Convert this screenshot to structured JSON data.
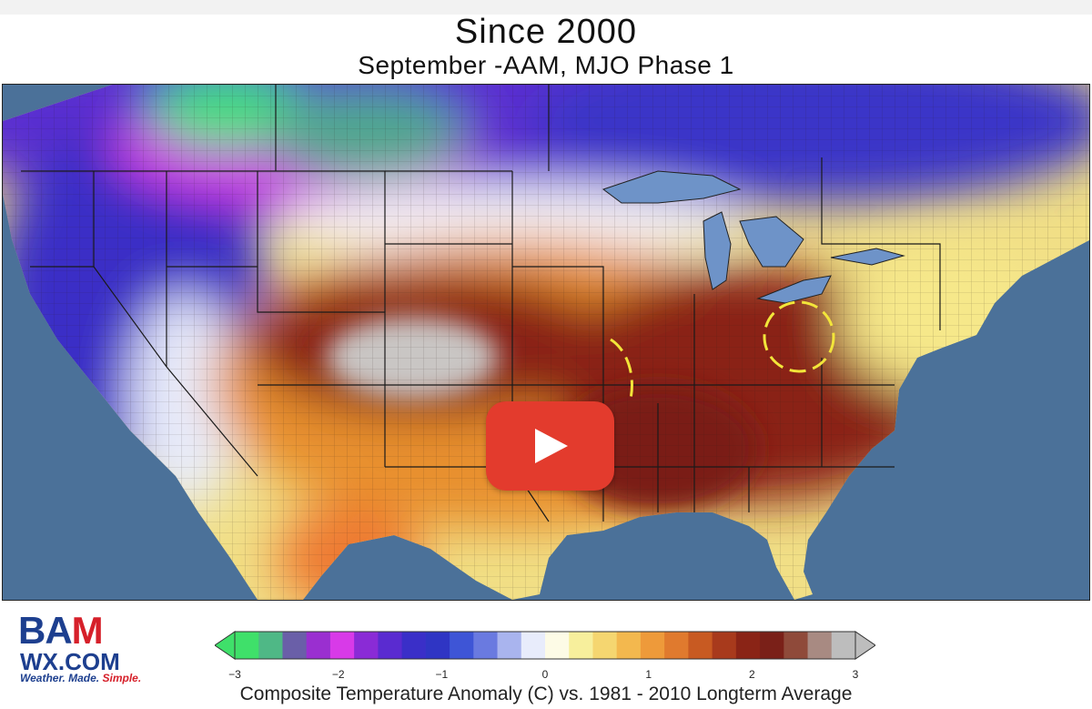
{
  "header": {
    "title": "Since 2000",
    "subtitle": "September -AAM, MJO Phase 1"
  },
  "logo": {
    "main_left": "BA",
    "main_right": "M",
    "domain": "WX.COM",
    "tagline_a": "Weather. Made. ",
    "tagline_b": "Simple."
  },
  "colorbar": {
    "caption": "Composite Temperature Anomaly (C) vs. 1981 - 2010 Longterm Average",
    "ticks": [
      "−3",
      "−2",
      "−1",
      "0",
      "1",
      "2",
      "3"
    ],
    "tick_values": [
      -3,
      -2,
      -1,
      0,
      1,
      2,
      3
    ],
    "range": [
      -3,
      3
    ],
    "colors": [
      "#3fe06a",
      "#4fb886",
      "#6a5fa8",
      "#9a2fd0",
      "#d83ae8",
      "#8a2bd6",
      "#5a2bd0",
      "#3a2fc8",
      "#2f35c4",
      "#3e55d6",
      "#6a7ae0",
      "#a9b4ee",
      "#e8ecfb",
      "#fdfbe6",
      "#f7ef9c",
      "#f5d670",
      "#f3b84e",
      "#ee9a3a",
      "#e07a2e",
      "#c85a22",
      "#a83a1c",
      "#8a2416",
      "#7a2018",
      "#8f4a3a",
      "#a88a82",
      "#bdbdbd"
    ]
  },
  "map": {
    "play_icon": "play-icon"
  }
}
